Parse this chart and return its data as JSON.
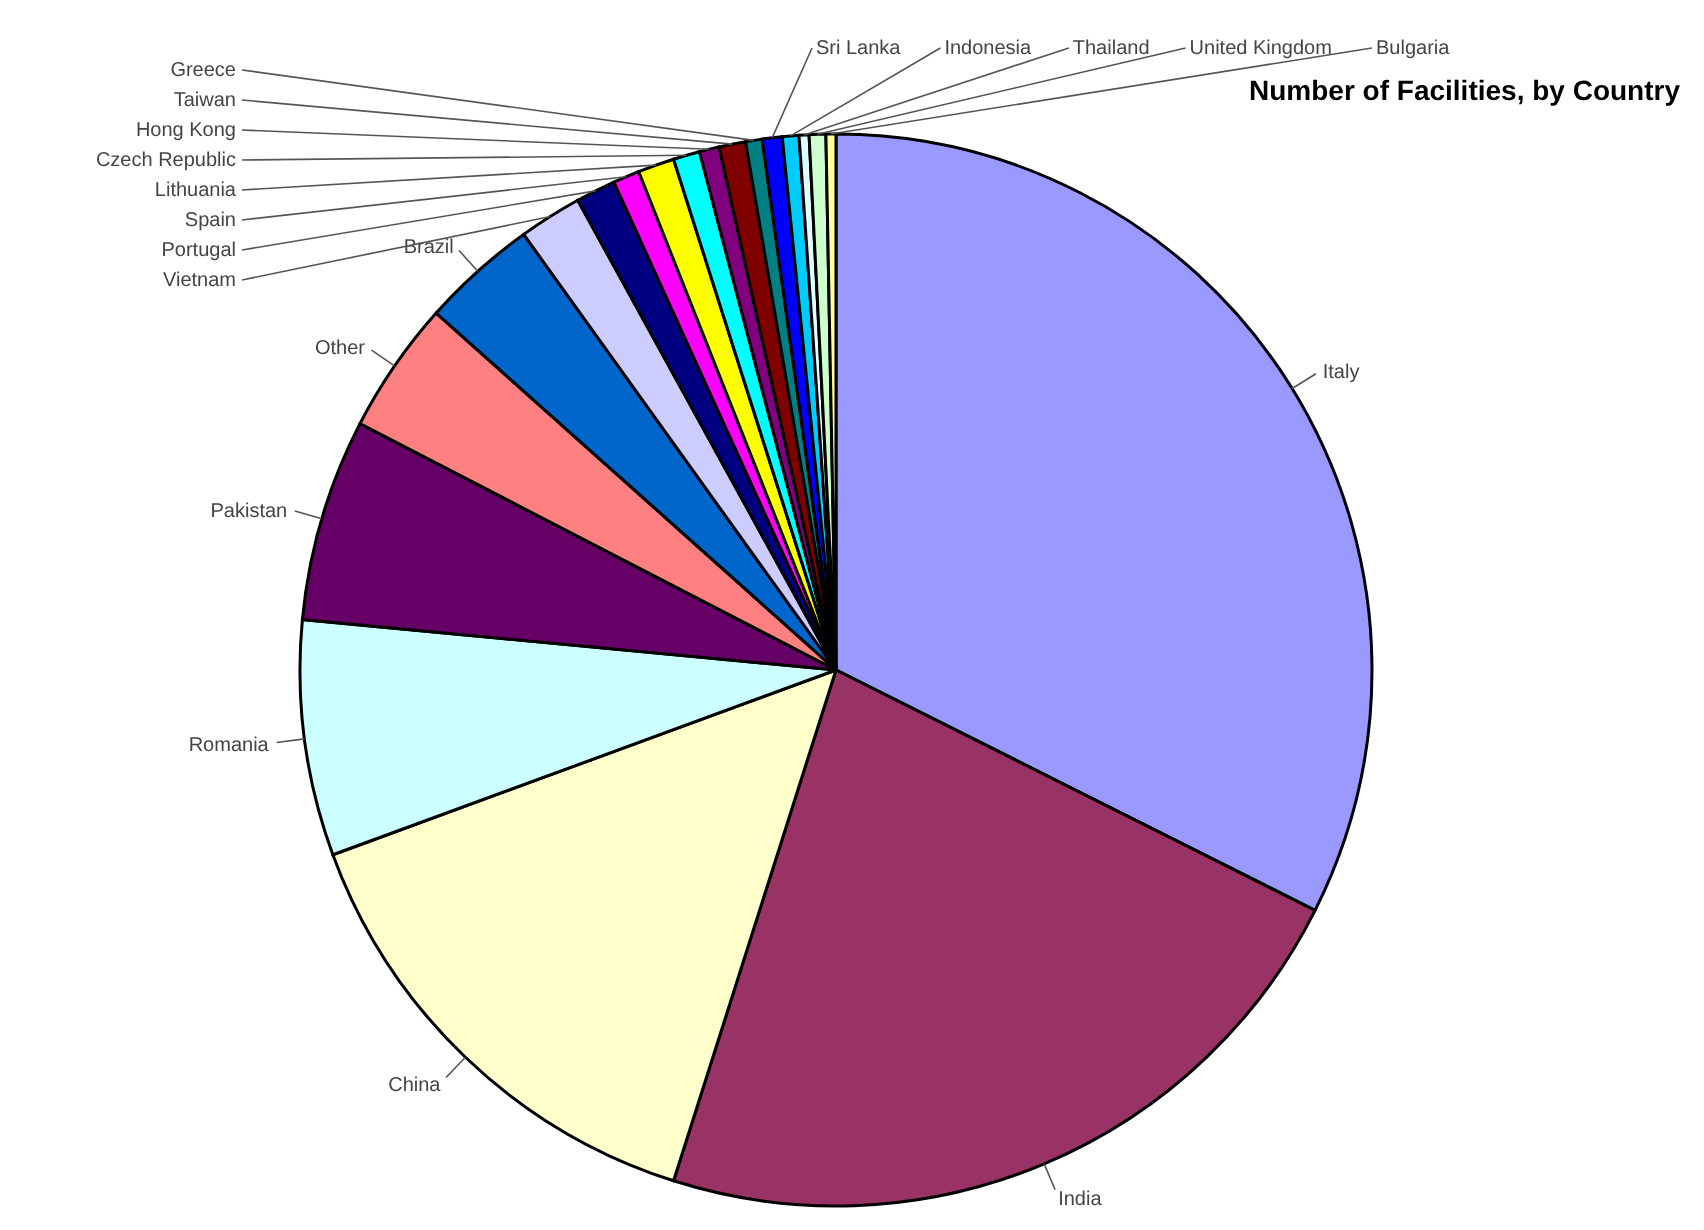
{
  "chart_data": {
    "type": "pie",
    "title": "Number of Facilities, by Country",
    "categories": [
      "Italy",
      "India",
      "China",
      "Romania",
      "Pakistan",
      "Other",
      "Brazil",
      "Vietnam",
      "Portugal",
      "Spain",
      "Lithuania",
      "Czech Republic",
      "Hong Kong",
      "Taiwan",
      "Greece",
      "Sri Lanka",
      "Indonesia",
      "Thailand",
      "United Kingdom",
      "Bulgaria"
    ],
    "values": [
      32.4,
      22.5,
      14.5,
      7.1,
      6.1,
      4.0,
      3.5,
      1.9,
      1.2,
      0.8,
      1.1,
      0.8,
      0.6,
      0.8,
      0.5,
      0.6,
      0.5,
      0.3,
      0.5,
      0.3
    ],
    "colors": [
      "#9999ff",
      "#993366",
      "#ffffcc",
      "#ccffff",
      "#660066",
      "#ff8080",
      "#0066cc",
      "#ccccff",
      "#000080",
      "#ff00ff",
      "#ffff00",
      "#00ffff",
      "#800080",
      "#800000",
      "#008080",
      "#0000ff",
      "#00ccff",
      "#e0ffff",
      "#ccffcc",
      "#ffff99"
    ]
  }
}
